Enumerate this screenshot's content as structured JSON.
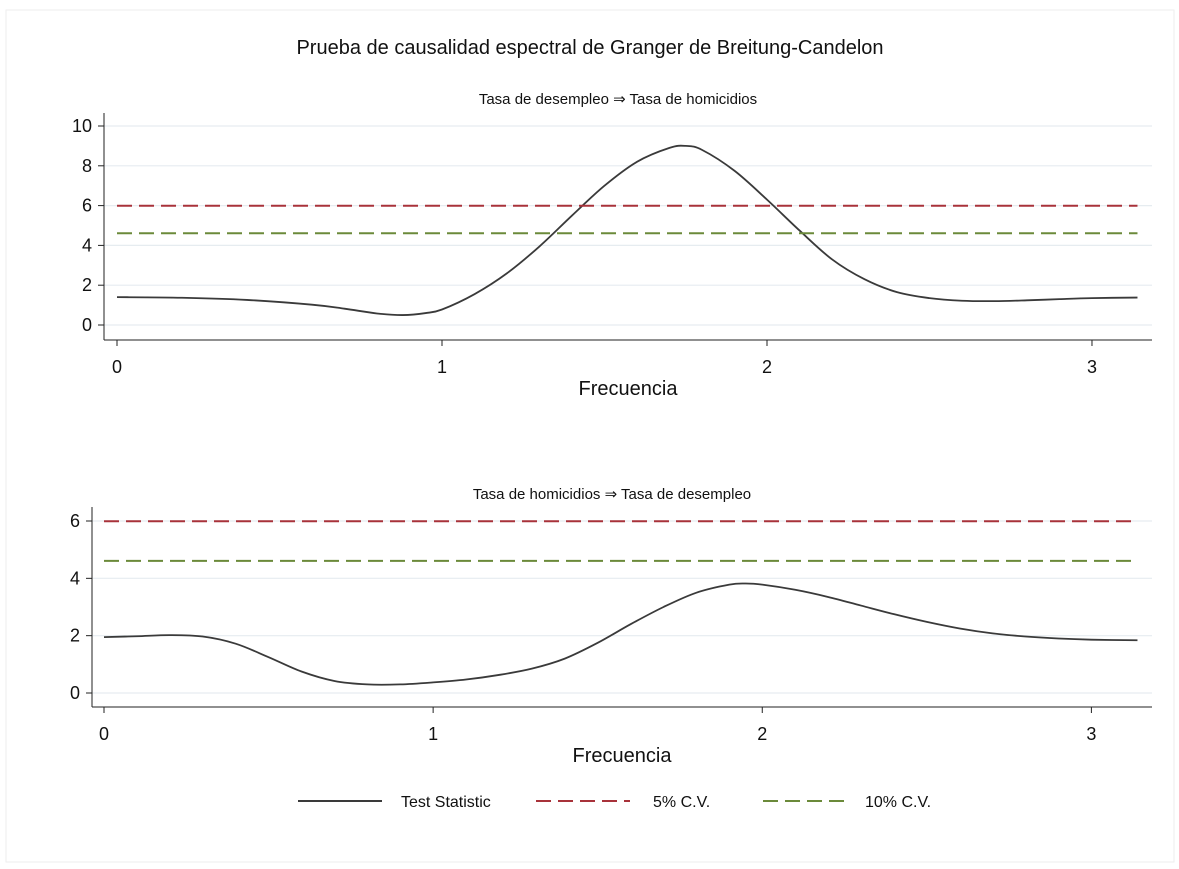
{
  "title": "Prueba de causalidad espectral de Granger de Breitung-Candelon",
  "colors": {
    "test_statistic": "#3a3a3a",
    "cv5": "#a8323a",
    "cv10": "#6b8a3a",
    "grid": "#e6ecf0",
    "axis": "#222222"
  },
  "legend": {
    "position": "bottom",
    "items": [
      {
        "label": "Test Statistic",
        "style": "solid",
        "color": "#3a3a3a"
      },
      {
        "label": "5% C.V.",
        "style": "dashed",
        "color": "#a8323a"
      },
      {
        "label": "10% C.V.",
        "style": "dashed",
        "color": "#6b8a3a"
      }
    ]
  },
  "chart_data": [
    {
      "type": "line",
      "subtitle": "Tasa de desempleo ⇒ Tasa de homicidios",
      "xlabel": "Frecuencia",
      "ylabel": "",
      "xlim": [
        0,
        3.1416
      ],
      "ylim": [
        0,
        10
      ],
      "xticks": [
        0,
        1,
        2,
        3
      ],
      "yticks": [
        0,
        2,
        4,
        6,
        8,
        10
      ],
      "grid": true,
      "x": [
        0.0,
        0.2,
        0.4,
        0.6,
        0.7,
        0.8,
        0.88,
        0.95,
        1.0,
        1.1,
        1.2,
        1.3,
        1.4,
        1.5,
        1.6,
        1.7,
        1.75,
        1.8,
        1.9,
        2.0,
        2.1,
        2.2,
        2.3,
        2.4,
        2.5,
        2.6,
        2.7,
        2.8,
        2.9,
        3.0,
        3.14
      ],
      "series": [
        {
          "name": "Test Statistic",
          "values": [
            1.4,
            1.37,
            1.26,
            1.02,
            0.82,
            0.58,
            0.5,
            0.6,
            0.78,
            1.55,
            2.6,
            3.95,
            5.5,
            7.0,
            8.2,
            8.9,
            9.0,
            8.8,
            7.75,
            6.3,
            4.75,
            3.3,
            2.3,
            1.65,
            1.35,
            1.22,
            1.2,
            1.24,
            1.3,
            1.35,
            1.38
          ]
        },
        {
          "name": "5% C.V.",
          "values": [
            5.99,
            5.99,
            5.99,
            5.99,
            5.99,
            5.99,
            5.99,
            5.99,
            5.99,
            5.99,
            5.99,
            5.99,
            5.99,
            5.99,
            5.99,
            5.99,
            5.99,
            5.99,
            5.99,
            5.99,
            5.99,
            5.99,
            5.99,
            5.99,
            5.99,
            5.99,
            5.99,
            5.99,
            5.99,
            5.99,
            5.99
          ]
        },
        {
          "name": "10% C.V.",
          "values": [
            4.61,
            4.61,
            4.61,
            4.61,
            4.61,
            4.61,
            4.61,
            4.61,
            4.61,
            4.61,
            4.61,
            4.61,
            4.61,
            4.61,
            4.61,
            4.61,
            4.61,
            4.61,
            4.61,
            4.61,
            4.61,
            4.61,
            4.61,
            4.61,
            4.61,
            4.61,
            4.61,
            4.61,
            4.61,
            4.61,
            4.61
          ]
        }
      ]
    },
    {
      "type": "line",
      "subtitle": "Tasa de homicidios ⇒ Tasa de desempleo",
      "xlabel": "Frecuencia",
      "ylabel": "",
      "xlim": [
        0,
        3.1416
      ],
      "ylim": [
        0,
        6
      ],
      "xticks": [
        0,
        1,
        2,
        3
      ],
      "yticks": [
        0,
        2,
        4,
        6
      ],
      "grid": true,
      "x": [
        0.0,
        0.1,
        0.2,
        0.3,
        0.4,
        0.5,
        0.6,
        0.7,
        0.8,
        0.9,
        1.0,
        1.1,
        1.2,
        1.3,
        1.4,
        1.5,
        1.6,
        1.7,
        1.8,
        1.9,
        1.95,
        2.0,
        2.1,
        2.2,
        2.3,
        2.4,
        2.5,
        2.6,
        2.7,
        2.8,
        2.9,
        3.0,
        3.14
      ],
      "series": [
        {
          "name": "Test Statistic",
          "values": [
            1.95,
            1.98,
            2.02,
            1.97,
            1.72,
            1.25,
            0.75,
            0.42,
            0.3,
            0.3,
            0.37,
            0.47,
            0.63,
            0.85,
            1.2,
            1.75,
            2.4,
            3.0,
            3.5,
            3.78,
            3.82,
            3.78,
            3.6,
            3.35,
            3.05,
            2.75,
            2.48,
            2.25,
            2.08,
            1.97,
            1.9,
            1.86,
            1.84
          ]
        },
        {
          "name": "5% C.V.",
          "values": [
            5.99,
            5.99,
            5.99,
            5.99,
            5.99,
            5.99,
            5.99,
            5.99,
            5.99,
            5.99,
            5.99,
            5.99,
            5.99,
            5.99,
            5.99,
            5.99,
            5.99,
            5.99,
            5.99,
            5.99,
            5.99,
            5.99,
            5.99,
            5.99,
            5.99,
            5.99,
            5.99,
            5.99,
            5.99,
            5.99,
            5.99,
            5.99,
            5.99
          ]
        },
        {
          "name": "10% C.V.",
          "values": [
            4.61,
            4.61,
            4.61,
            4.61,
            4.61,
            4.61,
            4.61,
            4.61,
            4.61,
            4.61,
            4.61,
            4.61,
            4.61,
            4.61,
            4.61,
            4.61,
            4.61,
            4.61,
            4.61,
            4.61,
            4.61,
            4.61,
            4.61,
            4.61,
            4.61,
            4.61,
            4.61,
            4.61,
            4.61,
            4.61,
            4.61,
            4.61,
            4.61
          ]
        }
      ]
    }
  ]
}
